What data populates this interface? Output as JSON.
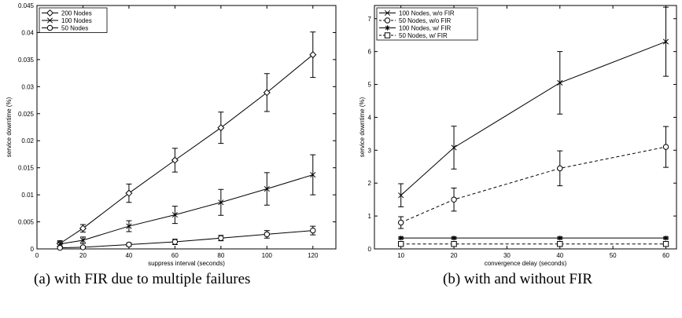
{
  "captions": [
    "(a) with FIR due to multiple failures",
    "(b) with and without FIR"
  ],
  "chart_data": [
    {
      "type": "line",
      "title": "",
      "xlabel": "suppress interval (seconds)",
      "ylabel": "service downtime (%)",
      "xlim": [
        0,
        130
      ],
      "ylim": [
        0,
        0.045
      ],
      "xticks": [
        0,
        20,
        40,
        60,
        80,
        100,
        120
      ],
      "yticks": [
        0,
        0.005,
        0.01,
        0.015,
        0.02,
        0.025,
        0.03,
        0.035,
        0.04,
        0.045
      ],
      "yticklabels": [
        "0",
        "0.005",
        "0.01",
        "0.015",
        "0.02",
        "0.025",
        "0.03",
        "0.035",
        "0.04",
        "0.045"
      ],
      "grid": false,
      "legend_position": "top-left",
      "series": [
        {
          "name": "200 Nodes",
          "marker": "diamond",
          "dash": "solid",
          "x": [
            10,
            20,
            40,
            60,
            80,
            100,
            120
          ],
          "y": [
            0.001,
            0.0038,
            0.0103,
            0.0164,
            0.0224,
            0.0289,
            0.0359
          ],
          "err": [
            0.0005,
            0.0007,
            0.0017,
            0.0022,
            0.0029,
            0.0035,
            0.0042
          ]
        },
        {
          "name": "100 Nodes",
          "marker": "x",
          "dash": "solid",
          "x": [
            10,
            20,
            40,
            60,
            80,
            100,
            120
          ],
          "y": [
            0.0009,
            0.0016,
            0.0042,
            0.0063,
            0.0086,
            0.0111,
            0.0137
          ],
          "err": [
            0.0004,
            0.0006,
            0.001,
            0.0016,
            0.0024,
            0.003,
            0.0037
          ]
        },
        {
          "name": "50 Nodes",
          "marker": "circle",
          "dash": "solid",
          "x": [
            10,
            20,
            40,
            60,
            80,
            100,
            120
          ],
          "y": [
            0.0002,
            0.0003,
            0.0008,
            0.0013,
            0.002,
            0.0027,
            0.0034
          ],
          "err": [
            0.0002,
            0.0002,
            0.0003,
            0.0005,
            0.0005,
            0.0007,
            0.0008
          ]
        }
      ]
    },
    {
      "type": "line",
      "title": "",
      "xlabel": "convergence delay (seconds)",
      "ylabel": "service downtime (%)",
      "xlim": [
        5,
        62
      ],
      "ylim": [
        0,
        7.4
      ],
      "xticks": [
        10,
        20,
        30,
        40,
        50,
        60
      ],
      "yticks": [
        0,
        1,
        2,
        3,
        4,
        5,
        6,
        7
      ],
      "yticklabels": [
        "0",
        "1",
        "2",
        "3",
        "4",
        "5",
        "6",
        "7"
      ],
      "grid": false,
      "legend_position": "top-left",
      "series": [
        {
          "name": "100 Nodes, w/o FIR",
          "marker": "x",
          "dash": "solid",
          "x": [
            10,
            20,
            40,
            60
          ],
          "y": [
            1.63,
            3.08,
            5.05,
            6.3
          ],
          "err": [
            0.35,
            0.65,
            0.95,
            1.05
          ]
        },
        {
          "name": "50 Nodes, w/o FIR",
          "marker": "circle",
          "dash": "dashed",
          "x": [
            10,
            20,
            40,
            60
          ],
          "y": [
            0.8,
            1.5,
            2.45,
            3.1
          ],
          "err": [
            0.18,
            0.35,
            0.53,
            0.62
          ]
        },
        {
          "name": "100 Nodes, w/ FIR",
          "marker": "star",
          "dash": "solid",
          "x": [
            10,
            20,
            40,
            60
          ],
          "y": [
            0.33,
            0.33,
            0.33,
            0.33
          ],
          "err": [
            0.03,
            0.03,
            0.03,
            0.03
          ]
        },
        {
          "name": "50 Nodes, w/ FIR",
          "marker": "square",
          "dash": "dashed",
          "x": [
            10,
            20,
            40,
            60
          ],
          "y": [
            0.15,
            0.15,
            0.15,
            0.15
          ],
          "err": [
            0.02,
            0.02,
            0.02,
            0.02
          ]
        }
      ]
    }
  ]
}
